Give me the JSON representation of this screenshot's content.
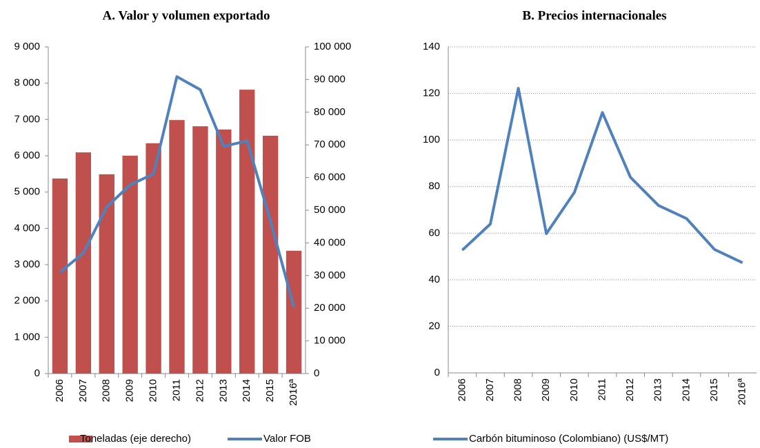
{
  "chart_data": [
    {
      "type": "bar_line",
      "title": "A. Valor y volumen exportado",
      "categories": [
        "2006",
        "2007",
        "2008",
        "2009",
        "2010",
        "2011",
        "2012",
        "2013",
        "2014",
        "2015",
        "2016ª"
      ],
      "series": [
        {
          "name": "Toneladas (eje derecho)",
          "color": "#c0504d",
          "kind": "bar",
          "axis": "y2",
          "values": [
            59700,
            67700,
            61000,
            66700,
            70500,
            77600,
            75700,
            74700,
            86900,
            72800,
            37600
          ]
        },
        {
          "name": "Valor FOB",
          "color": "#4f81bd",
          "kind": "line",
          "values": [
            2790,
            3320,
            4590,
            5200,
            5500,
            8180,
            7820,
            6260,
            6410,
            4210,
            1840
          ]
        }
      ],
      "ylim": [
        0,
        9000
      ],
      "yticks": [
        0,
        {
          "value": 1000,
          "label": "1 000"
        },
        {
          "value": 2000,
          "label": "2 000"
        },
        {
          "value": 3000,
          "label": "3 000"
        },
        {
          "value": 4000,
          "label": "4 000"
        },
        {
          "value": 5000,
          "label": "5 000"
        },
        {
          "value": 6000,
          "label": "6 000"
        },
        {
          "value": 7000,
          "label": "7 000"
        },
        {
          "value": 8000,
          "label": "8 000"
        },
        {
          "value": 9000,
          "label": "9 000"
        }
      ],
      "y2lim": [
        0,
        100000
      ],
      "y2ticks": [
        0,
        {
          "value": 10000,
          "label": "10 000"
        },
        {
          "value": 20000,
          "label": "20 000"
        },
        {
          "value": 30000,
          "label": "30 000"
        },
        {
          "value": 40000,
          "label": "40 000"
        },
        {
          "value": 50000,
          "label": "50 000"
        },
        {
          "value": 60000,
          "label": "60 000"
        },
        {
          "value": 70000,
          "label": "70 000"
        },
        {
          "value": 80000,
          "label": "80 000"
        },
        {
          "value": 90000,
          "label": "90 000"
        },
        {
          "value": 100000,
          "label": "100 000"
        }
      ],
      "grid": false
    },
    {
      "type": "line",
      "title": "B. Precios internacionales",
      "categories": [
        "2006",
        "2007",
        "2008",
        "2009",
        "2010",
        "2011",
        "2012",
        "2013",
        "2014",
        "2015",
        "2016ª"
      ],
      "series": [
        {
          "name": "Carbón bituminoso (Colombiano) (US$/MT)",
          "color": "#4f81bd",
          "kind": "line",
          "values": [
            52.7,
            63.9,
            122.2,
            59.8,
            77.5,
            111.8,
            84,
            71.9,
            66.3,
            53,
            47.3
          ]
        }
      ],
      "ylim": [
        0,
        140
      ],
      "yticks": [
        0,
        20,
        40,
        60,
        80,
        100,
        120,
        140
      ],
      "grid": true
    }
  ]
}
